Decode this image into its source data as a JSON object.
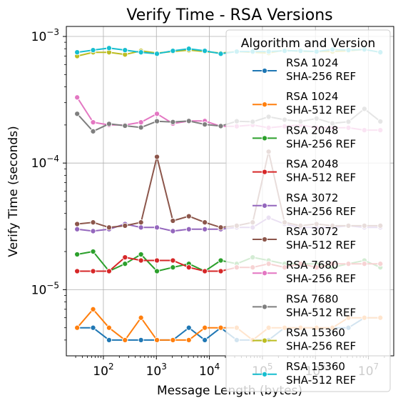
{
  "chart_data": {
    "type": "line",
    "title": "Verify Time - RSA Versions",
    "xlabel": "Message Length (bytes)",
    "ylabel": "Verify Time (seconds)",
    "xscale": "log",
    "yscale": "log",
    "xlim": [
      20,
      30000000
    ],
    "ylim": [
      3e-06,
      0.0012
    ],
    "grid": true,
    "legend": {
      "title": "Algorithm and Version",
      "placement": "upper-right"
    },
    "x_ticks": [
      {
        "base": "10",
        "exp": "2",
        "value": 100
      },
      {
        "base": "10",
        "exp": "3",
        "value": 1000
      },
      {
        "base": "10",
        "exp": "4",
        "value": 10000
      },
      {
        "base": "10",
        "exp": "5",
        "value": 100000
      },
      {
        "base": "10",
        "exp": "6",
        "value": 1000000
      },
      {
        "base": "10",
        "exp": "7",
        "value": 10000000
      }
    ],
    "y_ticks": [
      {
        "base": "10",
        "exp": "−5",
        "value": 1e-05
      },
      {
        "base": "10",
        "exp": "−4",
        "value": 0.0001
      },
      {
        "base": "10",
        "exp": "−3",
        "value": 0.001
      }
    ],
    "x": [
      32,
      64,
      128,
      256,
      512,
      1024,
      2048,
      4096,
      8192,
      16384,
      32768,
      65536,
      131072,
      262144,
      524288,
      1048576,
      2097152,
      4194304,
      8388608,
      16777216
    ],
    "series": [
      {
        "name": "RSA 1024 SHA-256 REF",
        "color": "#1f77b4",
        "values": [
          5e-06,
          5e-06,
          4e-06,
          4e-06,
          4e-06,
          4e-06,
          4e-06,
          5e-06,
          4e-06,
          5e-06,
          4e-06,
          4e-06,
          4e-06,
          5e-06,
          5e-06,
          5e-06,
          5e-06,
          5e-06,
          6e-06,
          6e-06
        ]
      },
      {
        "name": "RSA 1024 SHA-512 REF",
        "color": "#ff7f0e",
        "values": [
          5e-06,
          7e-06,
          5e-06,
          4e-06,
          6e-06,
          4e-06,
          4e-06,
          4e-06,
          5e-06,
          5e-06,
          5e-06,
          4e-06,
          5e-06,
          5e-06,
          5e-06,
          5e-06,
          5e-06,
          6e-06,
          6e-06,
          6e-06
        ]
      },
      {
        "name": "RSA 2048 SHA-256 REF",
        "color": "#2ca02c",
        "values": [
          1.9e-05,
          2e-05,
          1.4e-05,
          1.6e-05,
          1.9e-05,
          1.4e-05,
          1.5e-05,
          1.6e-05,
          1.4e-05,
          1.7e-05,
          1.6e-05,
          1.8e-05,
          1.7e-05,
          1.6e-05,
          1.6e-05,
          1.6e-05,
          1.5e-05,
          1.6e-05,
          1.7e-05,
          1.5e-05
        ]
      },
      {
        "name": "RSA 2048 SHA-512 REF",
        "color": "#d62728",
        "values": [
          1.4e-05,
          1.4e-05,
          1.4e-05,
          1.8e-05,
          1.7e-05,
          1.7e-05,
          1.7e-05,
          1.5e-05,
          1.4e-05,
          1.4e-05,
          1.5e-05,
          1.5e-05,
          1.6e-05,
          1.5e-05,
          1.6e-05,
          1.5e-05,
          1.6e-05,
          1.6e-05,
          1.6e-05,
          1.6e-05
        ]
      },
      {
        "name": "RSA 3072 SHA-256 REF",
        "color": "#9467bd",
        "values": [
          3e-05,
          2.9e-05,
          3e-05,
          3.3e-05,
          3.1e-05,
          3.1e-05,
          2.9e-05,
          3e-05,
          3e-05,
          3e-05,
          3.1e-05,
          3.1e-05,
          3.7e-05,
          3.3e-05,
          3.1e-05,
          3.1e-05,
          3.1e-05,
          3.2e-05,
          3.1e-05,
          3.1e-05
        ]
      },
      {
        "name": "RSA 3072 SHA-512 REF",
        "color": "#8c564b",
        "values": [
          3.3e-05,
          3.4e-05,
          3.1e-05,
          3.2e-05,
          3.4e-05,
          0.000112,
          3.5e-05,
          3.8e-05,
          3.4e-05,
          3.1e-05,
          3.2e-05,
          3.4e-05,
          0.000123,
          3.4e-05,
          3.2e-05,
          3.3e-05,
          3.2e-05,
          3.2e-05,
          3.2e-05,
          3.2e-05
        ]
      },
      {
        "name": "RSA 7680 SHA-256 REF",
        "color": "#e377c2",
        "values": [
          0.00033,
          0.00021,
          0.0002,
          0.0002,
          0.00021,
          0.000245,
          0.000205,
          0.000215,
          0.000215,
          0.000195,
          0.000195,
          0.0002,
          0.00019,
          0.000195,
          0.0002,
          0.00019,
          0.00019,
          0.00019,
          0.000182,
          0.000182
        ]
      },
      {
        "name": "RSA 7680 SHA-512 REF",
        "color": "#7f7f7f",
        "values": [
          0.000245,
          0.000178,
          0.000204,
          0.000197,
          0.000191,
          0.000214,
          0.000211,
          0.000215,
          0.000202,
          0.000196,
          0.000214,
          0.000212,
          0.000232,
          0.00022,
          0.000213,
          0.000225,
          0.000206,
          0.000212,
          0.000268,
          0.000213
        ]
      },
      {
        "name": "RSA 15360 SHA-256 REF",
        "color": "#bcbd22",
        "values": [
          0.0007,
          0.00075,
          0.00075,
          0.00072,
          0.00077,
          0.00074,
          0.00076,
          0.00078,
          0.00076,
          0.00074,
          0.00076,
          0.00075,
          0.00074,
          0.00078,
          0.00076,
          0.00076,
          0.00076,
          0.00077,
          0.00079,
          0.00075
        ]
      },
      {
        "name": "RSA 15360 SHA-512 REF",
        "color": "#17becf",
        "values": [
          0.00075,
          0.00078,
          0.00081,
          0.00078,
          0.00075,
          0.00073,
          0.00077,
          0.0008,
          0.00077,
          0.00073,
          0.00076,
          0.00076,
          0.00076,
          0.00077,
          0.00077,
          0.00076,
          0.00079,
          0.00078,
          0.00079,
          0.00075
        ]
      }
    ]
  }
}
